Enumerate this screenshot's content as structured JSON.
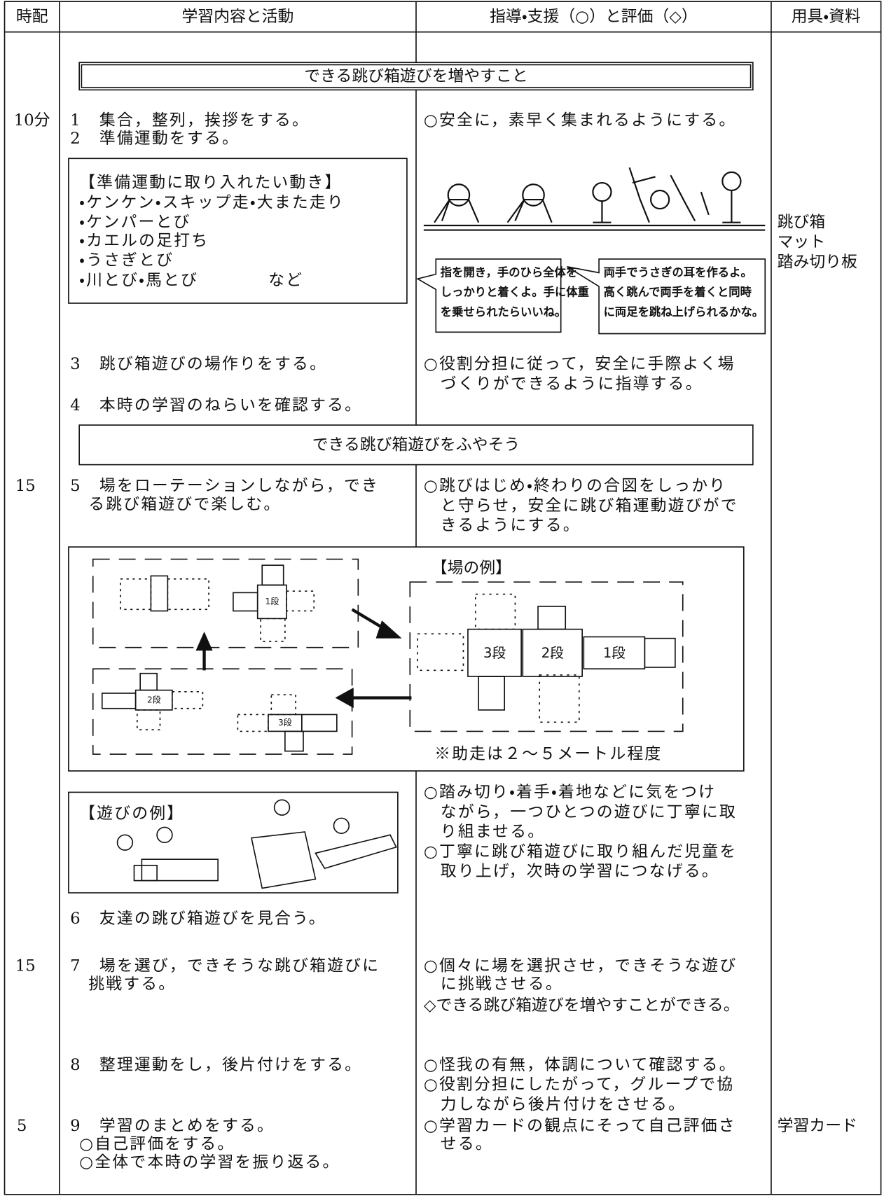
{
  "header": {
    "time": "時配",
    "activity": "学習内容と活動",
    "guidance": "指導・支援（○）と評価（◇）",
    "materials": "用具・資料"
  },
  "goal_box": "できる跳び箱遊びを増やすこと",
  "theme_box": "できる跳び箱遊びをふやそう",
  "times": [
    "10分",
    "15",
    "15",
    "5"
  ],
  "activities": [
    "1　集合，整列，挨拶をする。",
    "2　準備運動をする。",
    "3　跳び箱遊びの場作りをする。",
    "4　本時の学習のねらいを確認する。",
    "5　場をローテーションしながら，でき",
    "る跳び箱遊びで楽しむ。",
    "6　友達の跳び箱遊びを見合う。",
    "7　場を選び，できそうな跳び箱遊びに",
    "挑戦する。",
    "8　整理運動をし，後片付けをする。",
    "9　学習のまとめをする。",
    "○自己評価をする。",
    "○全体で本時の学習を振り返る。"
  ],
  "warmup": {
    "title": "【準備運動に取り入れたい動き】",
    "items": [
      "・ケンケン・スキップ走・大また走り",
      "・ケンパーとび",
      "・カエルの足打ち",
      "・うさぎとび",
      "・川とび・馬とび　　　　など"
    ]
  },
  "guidance": [
    "○安全に，素早く集まれるようにする。",
    "○役割分担に従って，安全に手際よく場",
    "づくりができるように指導する。",
    "○跳びはじめ・終わりの合図をしっかり",
    "と守らせ，安全に跳び箱運動遊びがで",
    "きるようにする。",
    "○踏み切り・着手・着地などに気をつけ",
    "ながら，一つひとつの遊びに丁寧に取",
    "り組ませる。",
    "○丁寧に跳び箱遊びに取り組んだ児童を",
    "取り上げ，次時の学習につなげる。",
    "○個々に場を選択させ，できそうな遊び",
    "に挑戦させる。",
    "◇できる跳び箱遊びを増やすことができる。",
    "○怪我の有無，体調について確認する。",
    "○役割分担にしたがって，グループで協",
    "力しながら後片付けをさせる。",
    "○学習カードの観点にそって自己評価さ",
    "せる。"
  ],
  "materials": [
    "跳び箱",
    "マット",
    "踏み切り板",
    "学習カード"
  ],
  "bubbles": [
    [
      "指を開き，手のひら全体を",
      "しっかりと着くよ。手に体重",
      "を乗せられたらいいね。"
    ],
    [
      "両手でうさぎの耳を作るよ。",
      "高く跳んで両手を着くと同時",
      "に両足を跳ね上げられるかな。"
    ]
  ],
  "field": {
    "title": "【場の例】",
    "note": "※助走は２～５メートル程度",
    "labels": [
      "3段",
      "2段",
      "1段"
    ],
    "small_labels": [
      "1段",
      "2段",
      "3段"
    ]
  },
  "play_example": "【遊びの例】"
}
